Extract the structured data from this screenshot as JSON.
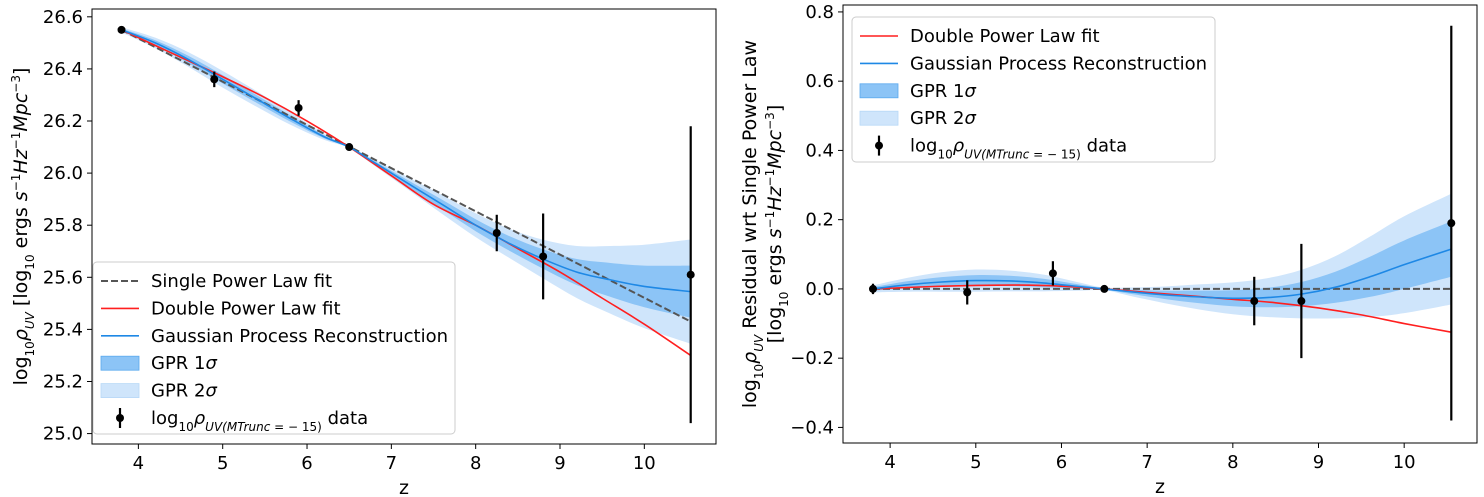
{
  "chart_data": [
    {
      "type": "line",
      "panel": "left",
      "title": "",
      "xlabel": "z",
      "ylabel_parts": [
        "log",
        "10",
        "ρ",
        "UV",
        " [log",
        "10",
        " ergs ",
        "s",
        "−1",
        "Hz",
        "−1",
        "Mpc",
        "−3",
        "]"
      ],
      "xlim": [
        3.45,
        10.85
      ],
      "ylim": [
        24.96,
        26.63
      ],
      "xticks": [
        4,
        5,
        6,
        7,
        8,
        9,
        10
      ],
      "yticks": [
        25.0,
        25.2,
        25.4,
        25.6,
        25.8,
        26.0,
        26.2,
        26.4,
        26.6
      ],
      "ytick_labels": [
        "25.0",
        "25.2",
        "25.4",
        "25.6",
        "25.8",
        "26.0",
        "26.2",
        "26.4",
        "26.6"
      ],
      "legend_loc": "lower left",
      "legend": [
        {
          "label": "Single Power Law fit",
          "style": "dashed"
        },
        {
          "label": "Double Power Law fit",
          "style": "red"
        },
        {
          "label": "Gaussian Process Reconstruction",
          "style": "blue"
        },
        {
          "label_parts": [
            "GPR 1",
            "σ"
          ],
          "style": "band1"
        },
        {
          "label_parts": [
            "GPR 2",
            "σ"
          ],
          "style": "band2"
        },
        {
          "label_parts": [
            "log",
            "10",
            "ρ",
            "UV(M",
            "Trunc",
            " = − 15)",
            " data"
          ],
          "style": "data"
        }
      ],
      "data_points": [
        {
          "x": 3.8,
          "y": 26.55,
          "yerr": 0.01
        },
        {
          "x": 4.9,
          "y": 26.36,
          "yerr": 0.03
        },
        {
          "x": 5.9,
          "y": 26.25,
          "yerr": 0.03
        },
        {
          "x": 6.5,
          "y": 26.1,
          "yerr": 0.0
        },
        {
          "x": 8.25,
          "y": 25.77,
          "yerr": 0.07
        },
        {
          "x": 8.8,
          "y": 25.68,
          "yerr": 0.165
        },
        {
          "x": 10.55,
          "y": 25.61,
          "yerr": 0.57
        }
      ],
      "single_power_law": {
        "x": [
          3.8,
          10.55
        ],
        "y": [
          26.55,
          25.43
        ]
      },
      "double_power_law": {
        "x": [
          3.8,
          4.5,
          5.0,
          5.5,
          6.0,
          6.5,
          7.0,
          7.5,
          8.0,
          8.5,
          9.0,
          9.5,
          10.0,
          10.55
        ],
        "y": [
          26.55,
          26.445,
          26.37,
          26.29,
          26.2,
          26.1,
          25.99,
          25.88,
          25.8,
          25.71,
          25.62,
          25.52,
          25.42,
          25.3
        ]
      },
      "gpr_mean": {
        "x": [
          3.8,
          4.2,
          4.6,
          5.0,
          5.4,
          5.8,
          6.2,
          6.5,
          6.8,
          7.2,
          7.6,
          8.0,
          8.4,
          8.8,
          9.2,
          9.6,
          10.0,
          10.55
        ],
        "y": [
          26.55,
          26.5,
          26.435,
          26.36,
          26.285,
          26.21,
          26.14,
          26.1,
          26.04,
          25.96,
          25.88,
          25.8,
          25.73,
          25.67,
          25.62,
          25.59,
          25.565,
          25.545
        ]
      },
      "gpr_1sigma": {
        "x": [
          3.8,
          4.2,
          4.6,
          5.0,
          5.4,
          5.8,
          6.2,
          6.5,
          6.8,
          7.2,
          7.6,
          8.0,
          8.4,
          8.8,
          9.2,
          9.6,
          10.0,
          10.55
        ],
        "half_width": [
          0.005,
          0.01,
          0.014,
          0.016,
          0.015,
          0.012,
          0.006,
          0.002,
          0.006,
          0.012,
          0.018,
          0.023,
          0.028,
          0.037,
          0.05,
          0.065,
          0.08,
          0.1
        ]
      },
      "gpr_2sigma": {
        "x": [
          3.8,
          4.2,
          4.6,
          5.0,
          5.4,
          5.8,
          6.2,
          6.5,
          6.8,
          7.2,
          7.6,
          8.0,
          8.4,
          8.8,
          9.2,
          9.6,
          10.0,
          10.55
        ],
        "half_width": [
          0.01,
          0.02,
          0.028,
          0.032,
          0.03,
          0.024,
          0.012,
          0.004,
          0.012,
          0.024,
          0.036,
          0.046,
          0.056,
          0.074,
          0.1,
          0.13,
          0.16,
          0.2
        ]
      }
    },
    {
      "type": "line",
      "panel": "right",
      "title": "",
      "xlabel": "z",
      "ylabel_line1_parts": [
        "log",
        "10",
        "ρ",
        "UV",
        " Residual wrt Single Power Law"
      ],
      "ylabel_line2_parts": [
        "[log",
        "10",
        " ergs ",
        "s",
        "−1",
        "Hz",
        "−1",
        "Mpc",
        "−3",
        "]"
      ],
      "xlim": [
        3.45,
        10.85
      ],
      "ylim": [
        -0.445,
        0.82
      ],
      "xticks": [
        4,
        5,
        6,
        7,
        8,
        9,
        10
      ],
      "yticks": [
        -0.4,
        -0.2,
        0.0,
        0.2,
        0.4,
        0.6,
        0.8
      ],
      "ytick_labels": [
        "−0.4",
        "−0.2",
        "0.0",
        "0.2",
        "0.4",
        "0.6",
        "0.8"
      ],
      "legend_loc": "upper left",
      "legend": [
        {
          "label": "Double Power Law fit",
          "style": "red"
        },
        {
          "label": "Gaussian Process Reconstruction",
          "style": "blue"
        },
        {
          "label_parts": [
            "GPR 1",
            "σ"
          ],
          "style": "band1"
        },
        {
          "label_parts": [
            "GPR 2",
            "σ"
          ],
          "style": "band2"
        },
        {
          "label_parts": [
            "log",
            "10",
            "ρ",
            "UV(M",
            "Trunc",
            " = − 15)",
            " data"
          ],
          "style": "data"
        }
      ],
      "data_points": [
        {
          "x": 3.8,
          "y": 0.0,
          "yerr": 0.015
        },
        {
          "x": 4.9,
          "y": -0.01,
          "yerr": 0.035
        },
        {
          "x": 5.9,
          "y": 0.045,
          "yerr": 0.035
        },
        {
          "x": 6.5,
          "y": 0.0,
          "yerr": 0.0
        },
        {
          "x": 8.25,
          "y": -0.035,
          "yerr": 0.07
        },
        {
          "x": 8.8,
          "y": -0.035,
          "yerr": 0.165
        },
        {
          "x": 10.55,
          "y": 0.19,
          "yerr": 0.57
        }
      ],
      "zero_line": {
        "x": [
          3.8,
          10.55
        ],
        "y": [
          0.0,
          0.0
        ]
      },
      "double_power_law": {
        "x": [
          3.8,
          4.5,
          5.0,
          5.5,
          6.0,
          6.5,
          7.0,
          7.5,
          8.0,
          8.5,
          9.0,
          9.5,
          10.0,
          10.55
        ],
        "y": [
          0.0,
          0.007,
          0.01,
          0.011,
          0.008,
          0.0,
          -0.01,
          -0.02,
          -0.03,
          -0.04,
          -0.055,
          -0.075,
          -0.1,
          -0.125
        ]
      },
      "gpr_mean": {
        "x": [
          3.8,
          4.2,
          4.6,
          5.0,
          5.4,
          5.8,
          6.2,
          6.5,
          6.8,
          7.2,
          7.6,
          8.0,
          8.4,
          8.8,
          9.2,
          9.6,
          10.0,
          10.55
        ],
        "y": [
          0.0,
          0.012,
          0.02,
          0.024,
          0.023,
          0.017,
          0.007,
          0.0,
          -0.008,
          -0.017,
          -0.023,
          -0.027,
          -0.025,
          -0.015,
          0.005,
          0.035,
          0.07,
          0.115
        ]
      },
      "gpr_1sigma": {
        "x": [
          3.8,
          4.2,
          4.6,
          5.0,
          5.4,
          5.8,
          6.2,
          6.5,
          6.8,
          7.2,
          7.6,
          8.0,
          8.4,
          8.8,
          9.2,
          9.6,
          10.0,
          10.55
        ],
        "half_width": [
          0.005,
          0.01,
          0.014,
          0.016,
          0.015,
          0.012,
          0.006,
          0.002,
          0.006,
          0.012,
          0.018,
          0.023,
          0.028,
          0.035,
          0.045,
          0.058,
          0.07,
          0.08
        ]
      },
      "gpr_2sigma": {
        "x": [
          3.8,
          4.2,
          4.6,
          5.0,
          5.4,
          5.8,
          6.2,
          6.5,
          6.8,
          7.2,
          7.6,
          8.0,
          8.4,
          8.8,
          9.2,
          9.6,
          10.0,
          10.55
        ],
        "half_width": [
          0.01,
          0.02,
          0.028,
          0.032,
          0.03,
          0.024,
          0.012,
          0.004,
          0.012,
          0.024,
          0.036,
          0.046,
          0.056,
          0.07,
          0.09,
          0.116,
          0.14,
          0.16
        ]
      }
    }
  ],
  "colors": {
    "single_power_law": "#555555",
    "double_power_law": "#ff1f1f",
    "gpr_mean": "#1e88e5",
    "gpr_1sigma": "#8cc4f6",
    "gpr_2sigma": "#cfe5fb",
    "data": "#000000",
    "axes": "#000000",
    "legend_border": "#cccccc"
  }
}
